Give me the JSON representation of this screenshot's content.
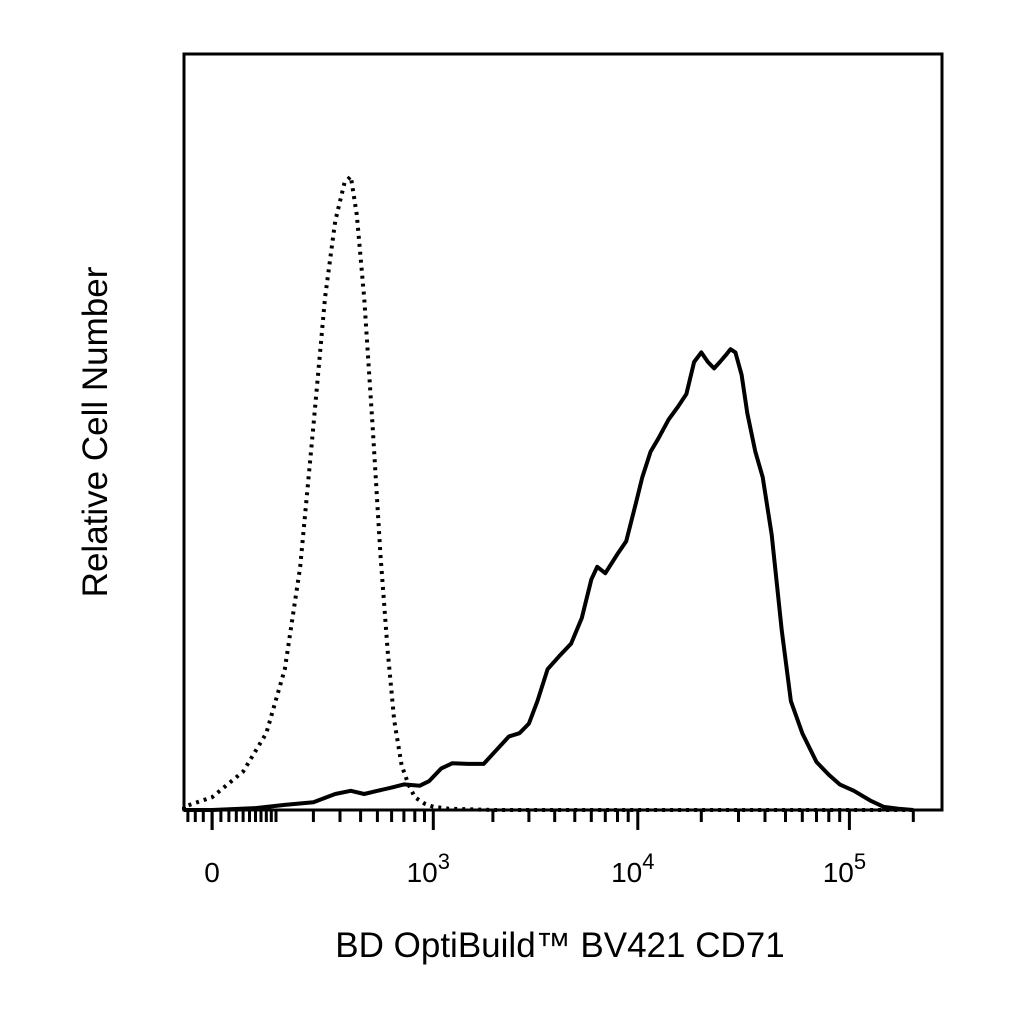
{
  "chart_data": {
    "type": "line",
    "xlabel": "BD OptiBuild™ BV421 CD71",
    "ylabel": "Relative Cell Number",
    "x_scale": "biexponential",
    "x_ticks": [
      {
        "value": 0,
        "label": "0"
      },
      {
        "value": 1000,
        "base": "10",
        "exp": "3"
      },
      {
        "value": 10000,
        "base": "10",
        "exp": "4"
      },
      {
        "value": 100000,
        "base": "10",
        "exp": "5"
      }
    ],
    "ylim": [
      0,
      100
    ],
    "legend": "none",
    "grid": false,
    "series": [
      {
        "style": "dotted",
        "color": "#000000",
        "points": [
          [
            -80,
            0
          ],
          [
            -40,
            0.5
          ],
          [
            0,
            2
          ],
          [
            40,
            6
          ],
          [
            80,
            12
          ],
          [
            120,
            22
          ],
          [
            160,
            38
          ],
          [
            200,
            60
          ],
          [
            240,
            80
          ],
          [
            280,
            92
          ],
          [
            320,
            98
          ],
          [
            350,
            99
          ],
          [
            380,
            93
          ],
          [
            420,
            80
          ],
          [
            470,
            60
          ],
          [
            520,
            40
          ],
          [
            570,
            25
          ],
          [
            620,
            14
          ],
          [
            680,
            7
          ],
          [
            740,
            4
          ],
          [
            800,
            2
          ],
          [
            900,
            1
          ],
          [
            1000,
            0.5
          ],
          [
            1200,
            0.2
          ],
          [
            2000,
            0
          ],
          [
            10000,
            0
          ],
          [
            100000,
            0
          ],
          [
            200000,
            0
          ]
        ]
      },
      {
        "style": "solid",
        "color": "#000000",
        "points": [
          [
            -80,
            0
          ],
          [
            0,
            0
          ],
          [
            60,
            0.3
          ],
          [
            120,
            0.8
          ],
          [
            200,
            1.2
          ],
          [
            280,
            2.5
          ],
          [
            350,
            3.0
          ],
          [
            420,
            2.5
          ],
          [
            500,
            3.0
          ],
          [
            600,
            3.5
          ],
          [
            700,
            4.0
          ],
          [
            850,
            3.8
          ],
          [
            950,
            4.5
          ],
          [
            1100,
            6.5
          ],
          [
            1250,
            7.3
          ],
          [
            1500,
            7.2
          ],
          [
            1800,
            7.2
          ],
          [
            2100,
            9.5
          ],
          [
            2400,
            11.5
          ],
          [
            2700,
            12.0
          ],
          [
            3000,
            13.5
          ],
          [
            3300,
            17.0
          ],
          [
            3700,
            22.0
          ],
          [
            4200,
            24.0
          ],
          [
            4800,
            26.0
          ],
          [
            5400,
            30.0
          ],
          [
            6000,
            36.0
          ],
          [
            6400,
            38.0
          ],
          [
            7000,
            37.0
          ],
          [
            8000,
            40.0
          ],
          [
            8800,
            42.0
          ],
          [
            9800,
            48.0
          ],
          [
            10500,
            52.0
          ],
          [
            11500,
            56.0
          ],
          [
            12500,
            58.0
          ],
          [
            14000,
            61.0
          ],
          [
            15500,
            63.0
          ],
          [
            17000,
            65.0
          ],
          [
            18500,
            70.0
          ],
          [
            20000,
            71.5
          ],
          [
            21500,
            70.0
          ],
          [
            23000,
            69.0
          ],
          [
            24500,
            70.0
          ],
          [
            26000,
            71.0
          ],
          [
            27500,
            72.0
          ],
          [
            29000,
            71.5
          ],
          [
            31000,
            68.0
          ],
          [
            33000,
            62.0
          ],
          [
            36000,
            56.0
          ],
          [
            39000,
            52.0
          ],
          [
            43000,
            43.0
          ],
          [
            48000,
            28.0
          ],
          [
            53000,
            17.0
          ],
          [
            60000,
            12.0
          ],
          [
            70000,
            7.5
          ],
          [
            80000,
            5.5
          ],
          [
            90000,
            4.0
          ],
          [
            105000,
            3.0
          ],
          [
            125000,
            1.5
          ],
          [
            145000,
            0.5
          ],
          [
            170000,
            0.2
          ],
          [
            200000,
            0
          ]
        ]
      }
    ]
  }
}
